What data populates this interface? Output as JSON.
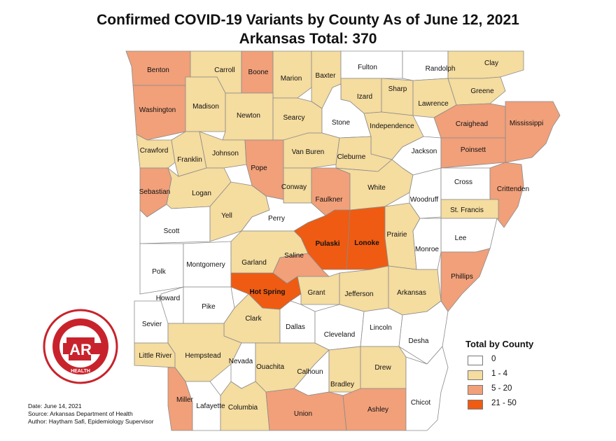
{
  "title": "Confirmed COVID-19 Variants by County As of June 12, 2021",
  "subtitle": "Arkansas Total: 370",
  "legend": {
    "title": "Total by County",
    "items": [
      {
        "label": "0",
        "color": "#ffffff"
      },
      {
        "label": "1 - 4",
        "color": "#f5dc9f"
      },
      {
        "label": "5 - 20",
        "color": "#f1a07a"
      },
      {
        "label": "21 - 50",
        "color": "#ef5b12"
      }
    ]
  },
  "footer": {
    "date": "Date: June 14, 2021",
    "source": "Source: Arkansas Department of Health",
    "author": "Author: Haytham Safi, Epidemiology Supervisor"
  },
  "logo": {
    "ring_text": "ARKANSAS DEPARTMENT OF",
    "center": "AR",
    "bottom": "HEALTH",
    "color": "#c8232c"
  },
  "counties": [
    {
      "name": "Benton",
      "category": 2
    },
    {
      "name": "Carroll",
      "category": 1
    },
    {
      "name": "Boone",
      "category": 2
    },
    {
      "name": "Marion",
      "category": 1
    },
    {
      "name": "Baxter",
      "category": 1
    },
    {
      "name": "Fulton",
      "category": 0
    },
    {
      "name": "Randolph",
      "category": 0
    },
    {
      "name": "Clay",
      "category": 1
    },
    {
      "name": "Washington",
      "category": 2
    },
    {
      "name": "Madison",
      "category": 1
    },
    {
      "name": "Newton",
      "category": 1
    },
    {
      "name": "Searcy",
      "category": 1
    },
    {
      "name": "Izard",
      "category": 1
    },
    {
      "name": "Sharp",
      "category": 1
    },
    {
      "name": "Lawrence",
      "category": 1
    },
    {
      "name": "Greene",
      "category": 1
    },
    {
      "name": "Stone",
      "category": 0
    },
    {
      "name": "Independence",
      "category": 1
    },
    {
      "name": "Craighead",
      "category": 2
    },
    {
      "name": "Mississippi",
      "category": 2
    },
    {
      "name": "Crawford",
      "category": 1
    },
    {
      "name": "Franklin",
      "category": 1
    },
    {
      "name": "Johnson",
      "category": 1
    },
    {
      "name": "Pope",
      "category": 2
    },
    {
      "name": "Van Buren",
      "category": 1
    },
    {
      "name": "Cleburne",
      "category": 1
    },
    {
      "name": "Jackson",
      "category": 0
    },
    {
      "name": "Poinsett",
      "category": 2
    },
    {
      "name": "Sebastian",
      "category": 2
    },
    {
      "name": "Logan",
      "category": 1
    },
    {
      "name": "Conway",
      "category": 1
    },
    {
      "name": "Faulkner",
      "category": 2
    },
    {
      "name": "White",
      "category": 1
    },
    {
      "name": "Woodruff",
      "category": 0
    },
    {
      "name": "Cross",
      "category": 0
    },
    {
      "name": "Crittenden",
      "category": 2
    },
    {
      "name": "Scott",
      "category": 0
    },
    {
      "name": "Yell",
      "category": 1
    },
    {
      "name": "Perry",
      "category": 0
    },
    {
      "name": "St. Francis",
      "category": 1
    },
    {
      "name": "Pulaski",
      "category": 3
    },
    {
      "name": "Lonoke",
      "category": 3
    },
    {
      "name": "Prairie",
      "category": 1
    },
    {
      "name": "Lee",
      "category": 0
    },
    {
      "name": "Polk",
      "category": 0
    },
    {
      "name": "Montgomery",
      "category": 0
    },
    {
      "name": "Garland",
      "category": 1
    },
    {
      "name": "Saline",
      "category": 2
    },
    {
      "name": "Monroe",
      "category": 0
    },
    {
      "name": "Phillips",
      "category": 2
    },
    {
      "name": "Howard",
      "category": 0
    },
    {
      "name": "Pike",
      "category": 0
    },
    {
      "name": "Hot Spring",
      "category": 3
    },
    {
      "name": "Grant",
      "category": 1
    },
    {
      "name": "Jefferson",
      "category": 1
    },
    {
      "name": "Arkansas",
      "category": 1
    },
    {
      "name": "Sevier",
      "category": 0
    },
    {
      "name": "Clark",
      "category": 1
    },
    {
      "name": "Dallas",
      "category": 0
    },
    {
      "name": "Cleveland",
      "category": 0
    },
    {
      "name": "Lincoln",
      "category": 0
    },
    {
      "name": "Desha",
      "category": 0
    },
    {
      "name": "Little River",
      "category": 1
    },
    {
      "name": "Hempstead",
      "category": 1
    },
    {
      "name": "Nevada",
      "category": 0
    },
    {
      "name": "Ouachita",
      "category": 1
    },
    {
      "name": "Calhoun",
      "category": 0
    },
    {
      "name": "Bradley",
      "category": 1
    },
    {
      "name": "Drew",
      "category": 1
    },
    {
      "name": "Miller",
      "category": 2
    },
    {
      "name": "Lafayette",
      "category": 0
    },
    {
      "name": "Columbia",
      "category": 1
    },
    {
      "name": "Union",
      "category": 2
    },
    {
      "name": "Ashley",
      "category": 2
    },
    {
      "name": "Chicot",
      "category": 0
    }
  ]
}
